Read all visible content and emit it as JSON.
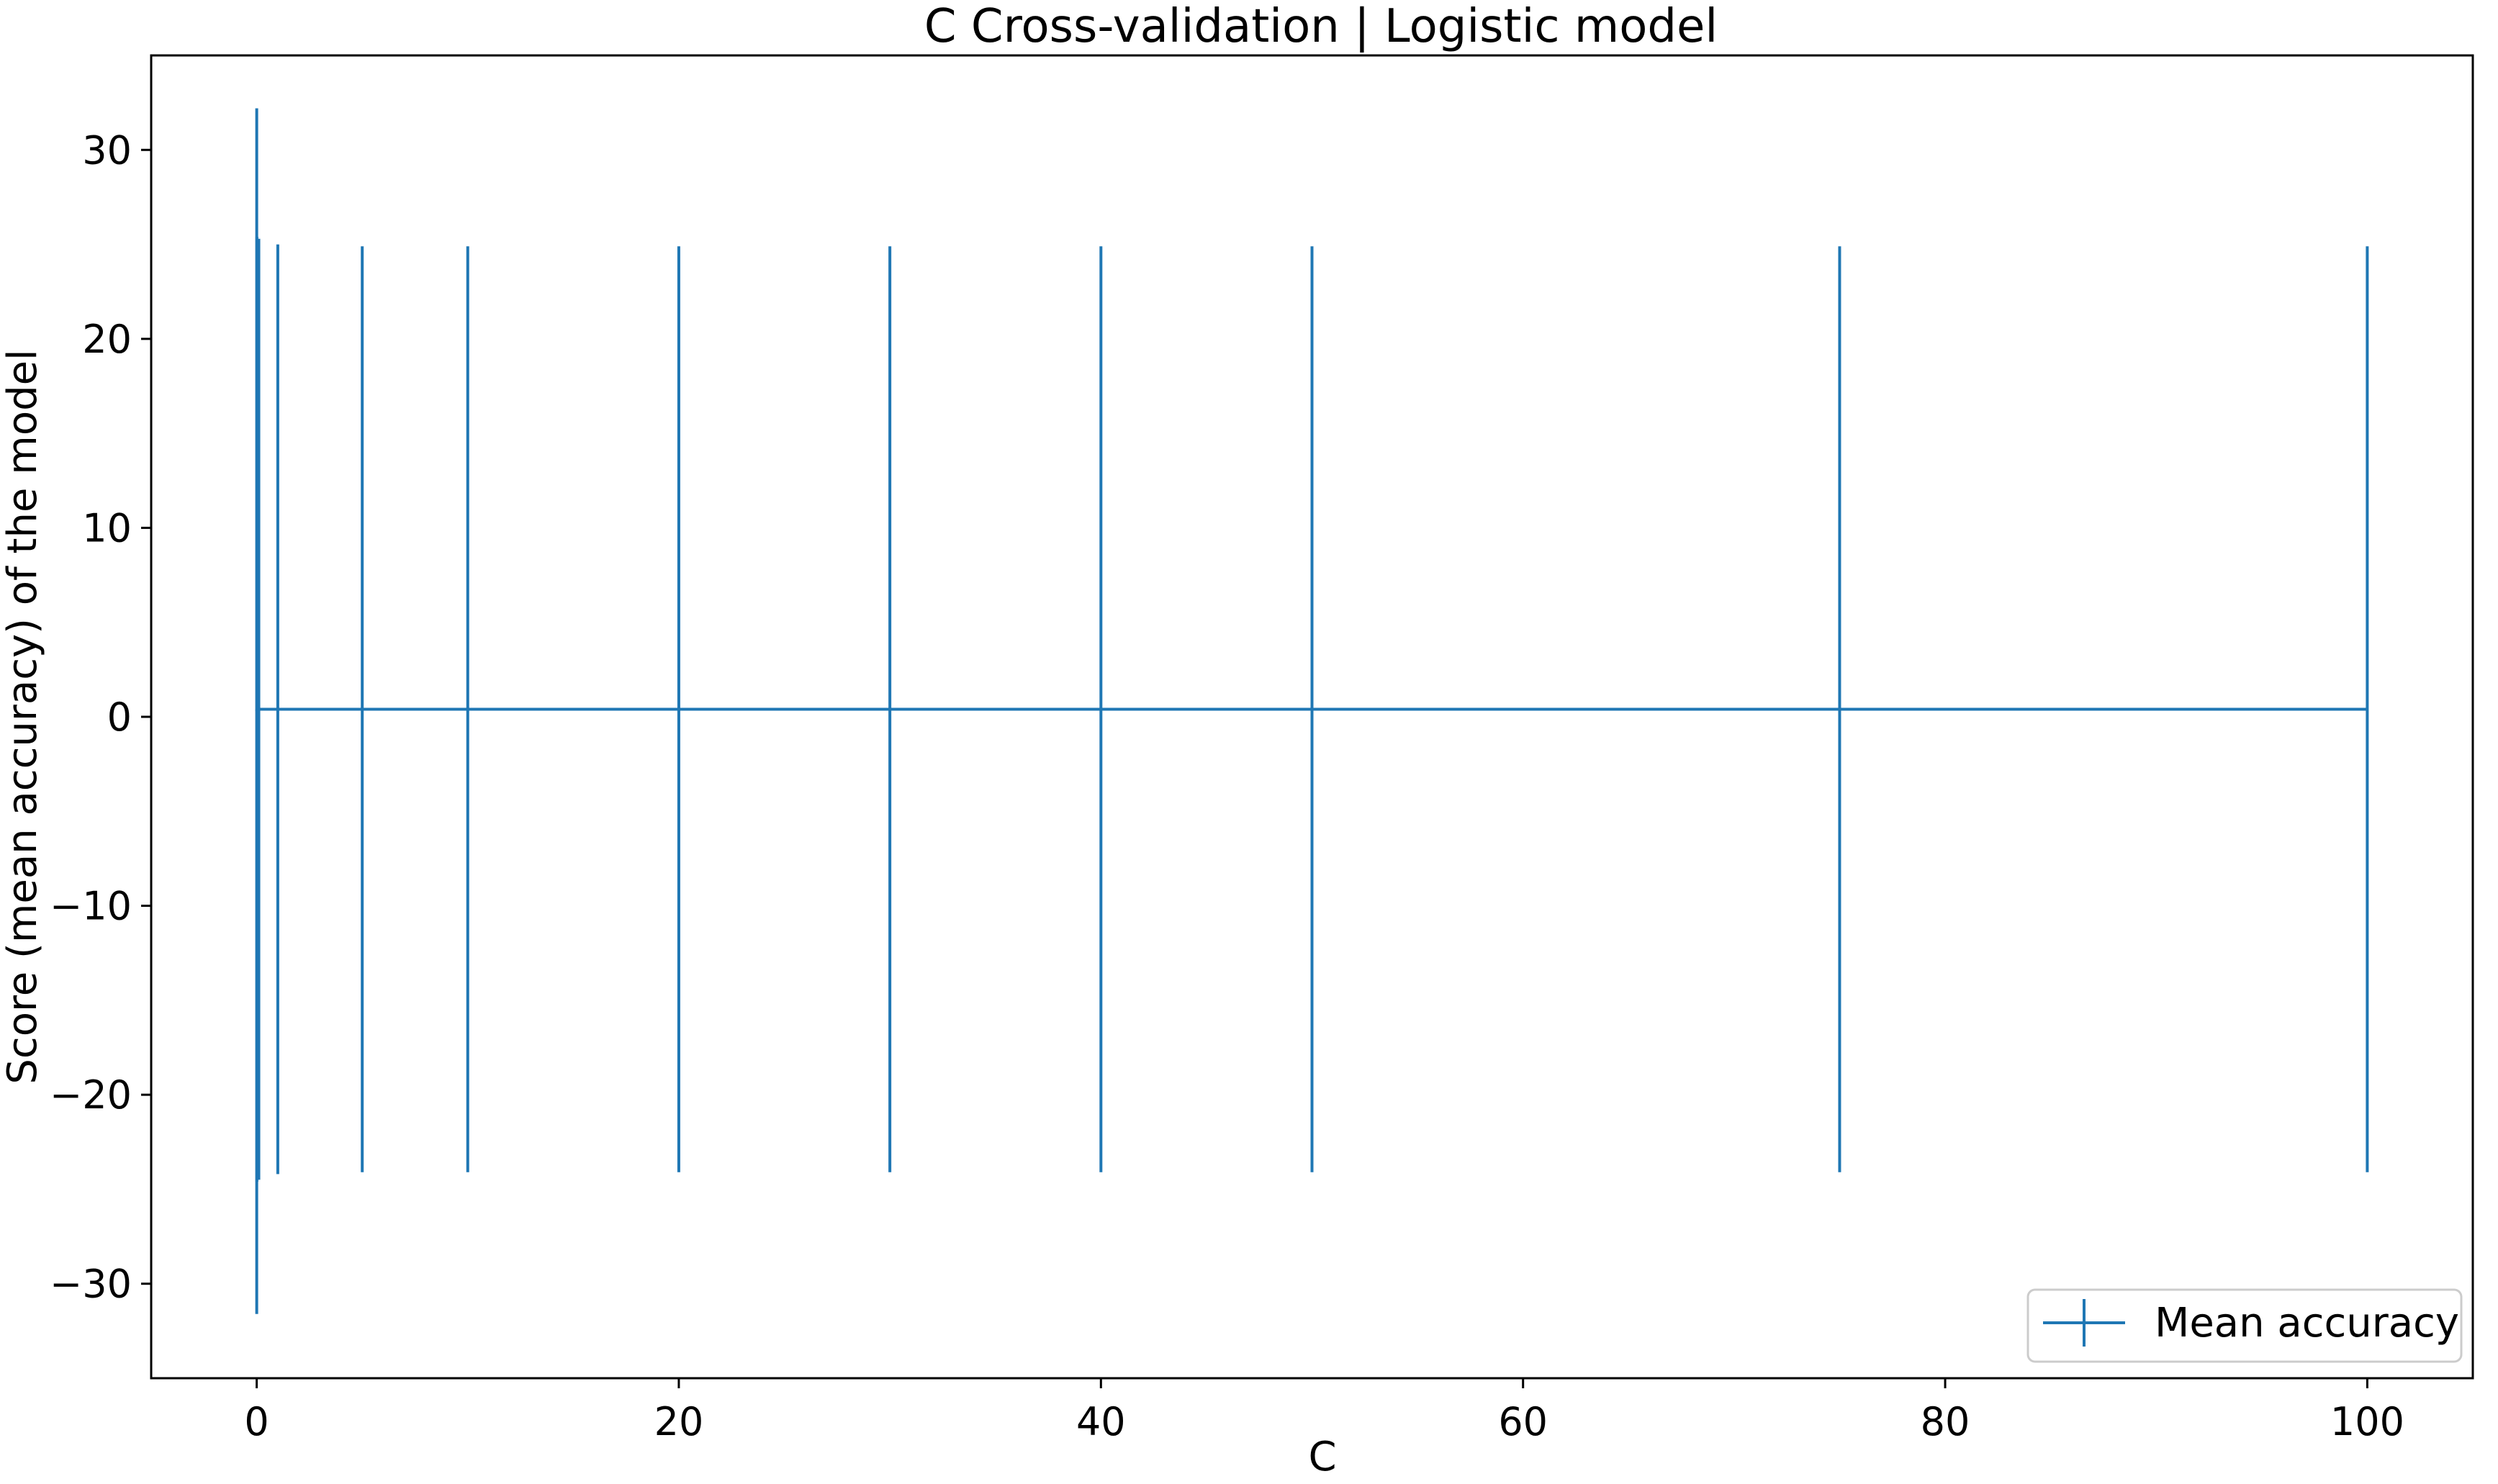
{
  "chart_data": {
    "type": "line",
    "title": "C Cross-validation | Logistic model",
    "xlabel": "C",
    "ylabel": "Score (mean accuracy) of the model",
    "xlim": [
      -5,
      105
    ],
    "ylim": [
      -35,
      35
    ],
    "x_ticks": [
      0,
      20,
      40,
      60,
      80,
      100
    ],
    "y_ticks": [
      -30,
      -20,
      -10,
      0,
      10,
      20,
      30
    ],
    "x_tick_labels": [
      "0",
      "20",
      "40",
      "60",
      "80",
      "100"
    ],
    "y_tick_labels": [
      "−30",
      "−20",
      "−10",
      "0",
      "10",
      "20",
      "30"
    ],
    "grid": false,
    "legend_position": "lower right",
    "series": [
      {
        "name": "Mean accuracy",
        "color": "#1f77b4",
        "x": [
          0.001,
          0.01,
          0.1,
          1,
          5,
          10,
          20,
          30,
          40,
          50,
          75,
          100
        ],
        "y": [
          0.3,
          0.4,
          0.4,
          0.4,
          0.4,
          0.4,
          0.4,
          0.4,
          0.4,
          0.4,
          0.4,
          0.4
        ],
        "yerr": [
          31.9,
          25.0,
          24.9,
          24.6,
          24.5,
          24.5,
          24.5,
          24.5,
          24.5,
          24.5,
          24.5,
          24.5
        ]
      }
    ]
  }
}
